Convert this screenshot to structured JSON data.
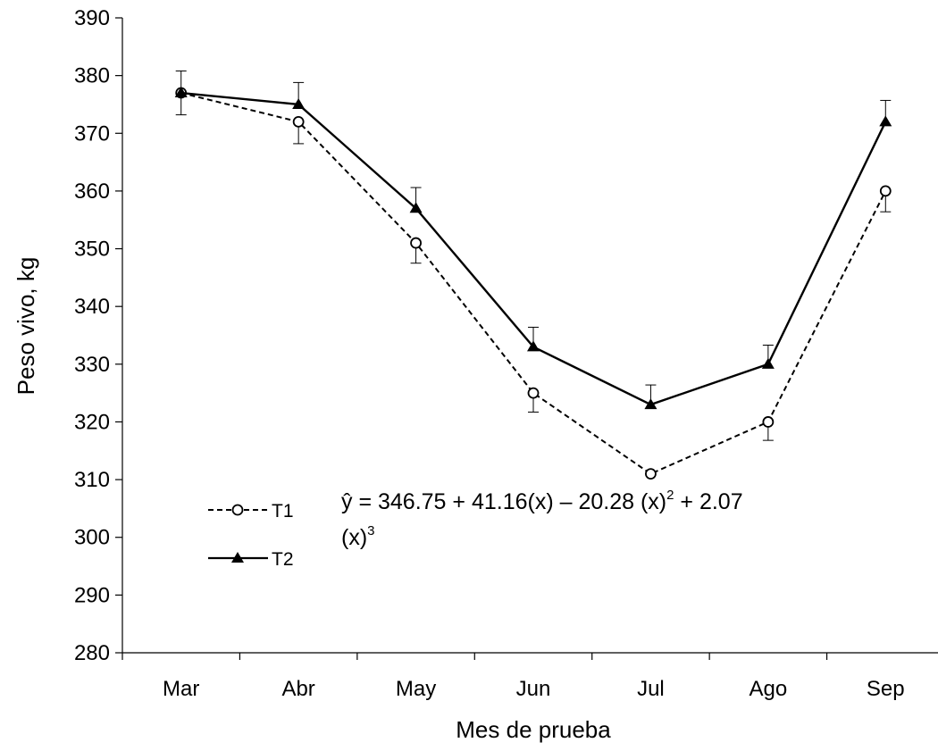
{
  "chart_data": {
    "type": "line",
    "title": "",
    "xlabel": "Mes de prueba",
    "ylabel": "Peso vivo, kg",
    "ylim": [
      280,
      390
    ],
    "yticks": [
      280,
      290,
      300,
      310,
      320,
      330,
      340,
      350,
      360,
      370,
      380,
      390
    ],
    "categories": [
      "Mar",
      "Abr",
      "May",
      "Jun",
      "Jul",
      "Ago",
      "Sep"
    ],
    "grid": false,
    "legend_position": "lower-left",
    "series": [
      {
        "name": "T1",
        "line_style": "dashed",
        "marker": "open-circle",
        "color": "#000000",
        "values": [
          377,
          372,
          351,
          325,
          311,
          320,
          360
        ],
        "error": [
          3.8,
          3.8,
          3.5,
          3.3,
          0,
          3.2,
          3.6
        ]
      },
      {
        "name": "T2",
        "line_style": "solid",
        "marker": "filled-triangle",
        "color": "#000000",
        "values": [
          377,
          375,
          357,
          333,
          323,
          330,
          372
        ],
        "error": [
          3.8,
          3.8,
          3.6,
          3.4,
          3.4,
          3.3,
          3.7
        ]
      }
    ],
    "annotation": {
      "line1_prefix": "ŷ = 346.75 + 41.16(x) – 20.28 (x)",
      "line1_sup": "2",
      "line1_suffix": " + 2.07",
      "line2_base": "(x)",
      "line2_sup": "3"
    }
  }
}
